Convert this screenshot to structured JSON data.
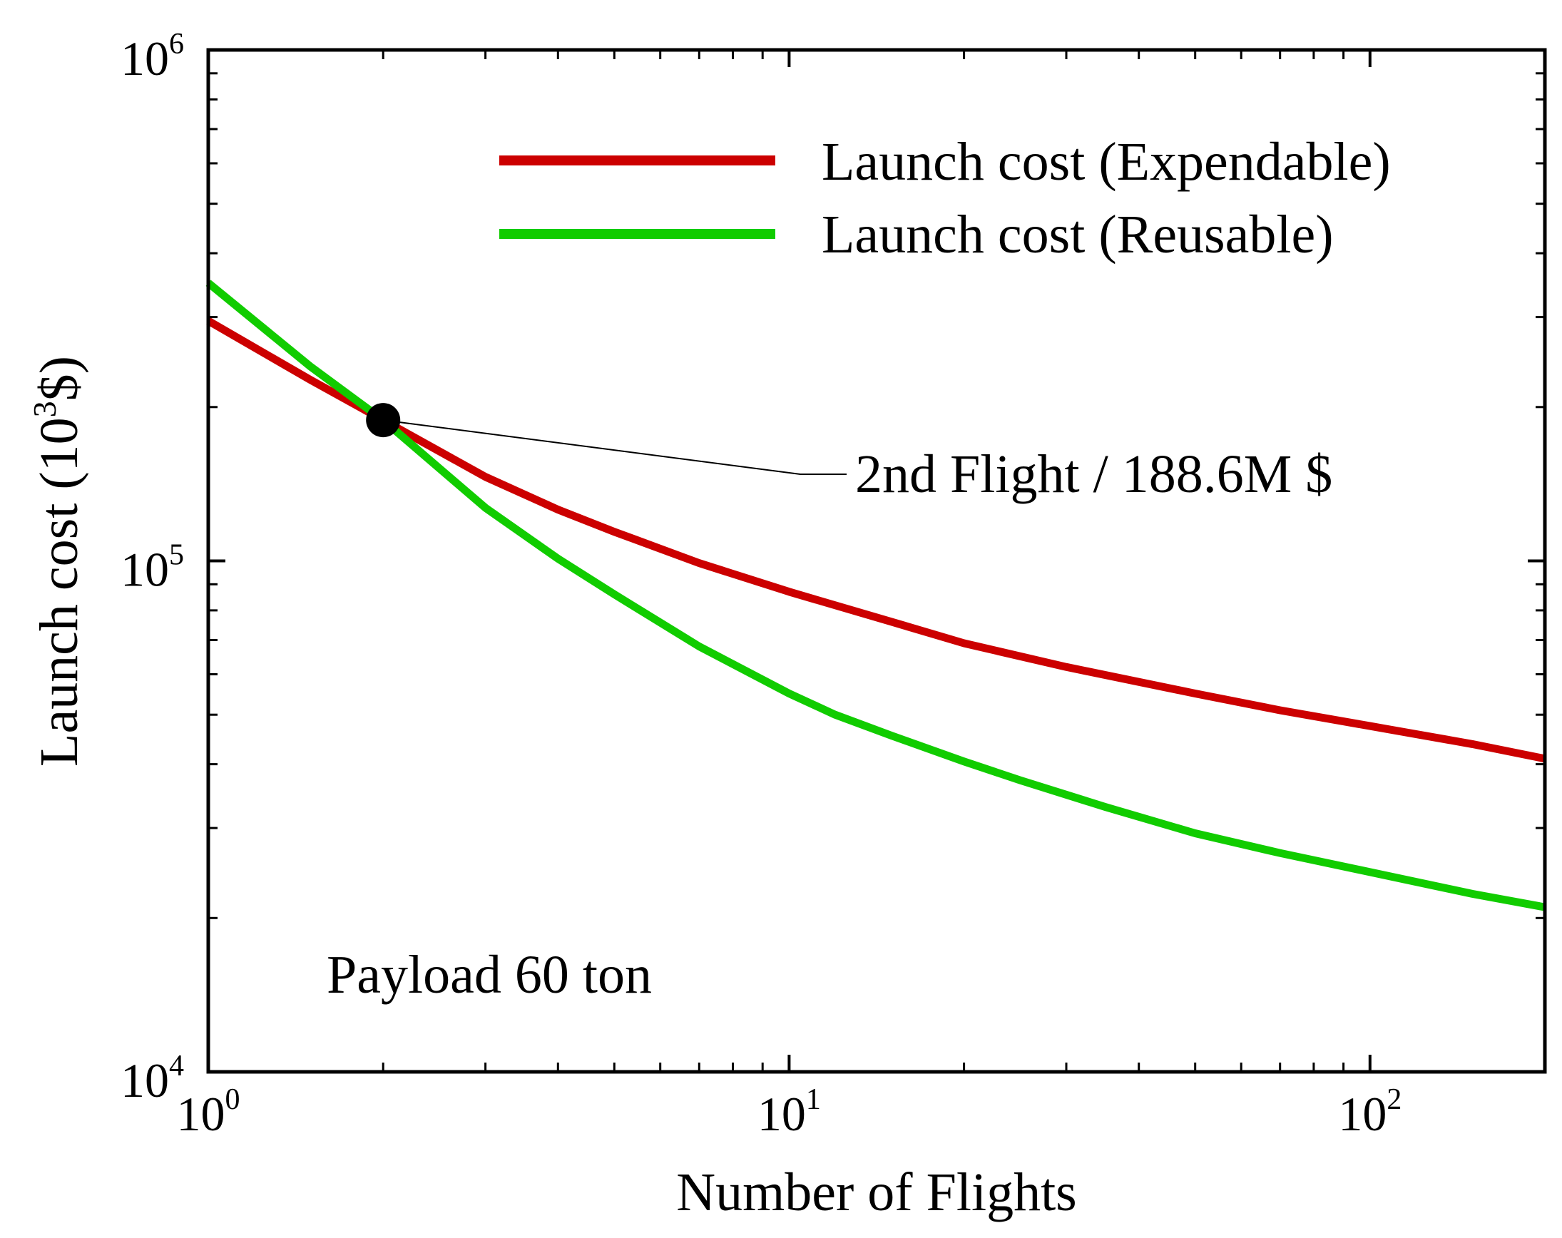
{
  "chart_data": {
    "type": "line",
    "xscale": "log",
    "yscale": "log",
    "xlim": [
      1,
      200
    ],
    "ylim": [
      10000,
      1000000
    ],
    "xlabel": "Number of Flights",
    "ylabel": "Launch cost (10",
    "ylabel_exp": "3",
    "ylabel_suffix": "$)",
    "x_ticks": [
      {
        "base": "10",
        "exp": "0",
        "value": 1
      },
      {
        "base": "10",
        "exp": "1",
        "value": 10
      },
      {
        "base": "10",
        "exp": "2",
        "value": 100
      }
    ],
    "y_ticks": [
      {
        "base": "10",
        "exp": "4",
        "value": 10000
      },
      {
        "base": "10",
        "exp": "5",
        "value": 100000
      },
      {
        "base": "10",
        "exp": "6",
        "value": 1000000
      }
    ],
    "series": [
      {
        "name": "Launch cost (Expendable)",
        "color": "#cc0000",
        "x": [
          1,
          1.5,
          2,
          3,
          4,
          5,
          7,
          10,
          15,
          20,
          30,
          50,
          70,
          100,
          150,
          200
        ],
        "values": [
          295000,
          226000,
          188600,
          146000,
          126000,
          114000,
          99000,
          87000,
          76000,
          69000,
          62000,
          55000,
          51000,
          47500,
          43800,
          41000
        ]
      },
      {
        "name": "Launch cost (Reusable)",
        "color": "#11cc00",
        "x": [
          1,
          1.5,
          2,
          3,
          4,
          5,
          7,
          10,
          12,
          15,
          20,
          25,
          35,
          50,
          70,
          100,
          150,
          200
        ],
        "values": [
          350000,
          240000,
          188600,
          127000,
          101000,
          86000,
          68000,
          55000,
          50000,
          45500,
          40500,
          37200,
          33000,
          29300,
          26800,
          24600,
          22300,
          21000
        ]
      }
    ],
    "marker": {
      "x": 2,
      "y": 188600,
      "color": "#000000"
    },
    "annotations": {
      "crossover": "2nd Flight / 188.6M $",
      "payload": "Payload 60 ton"
    },
    "legend": "top-right",
    "grid": false
  }
}
